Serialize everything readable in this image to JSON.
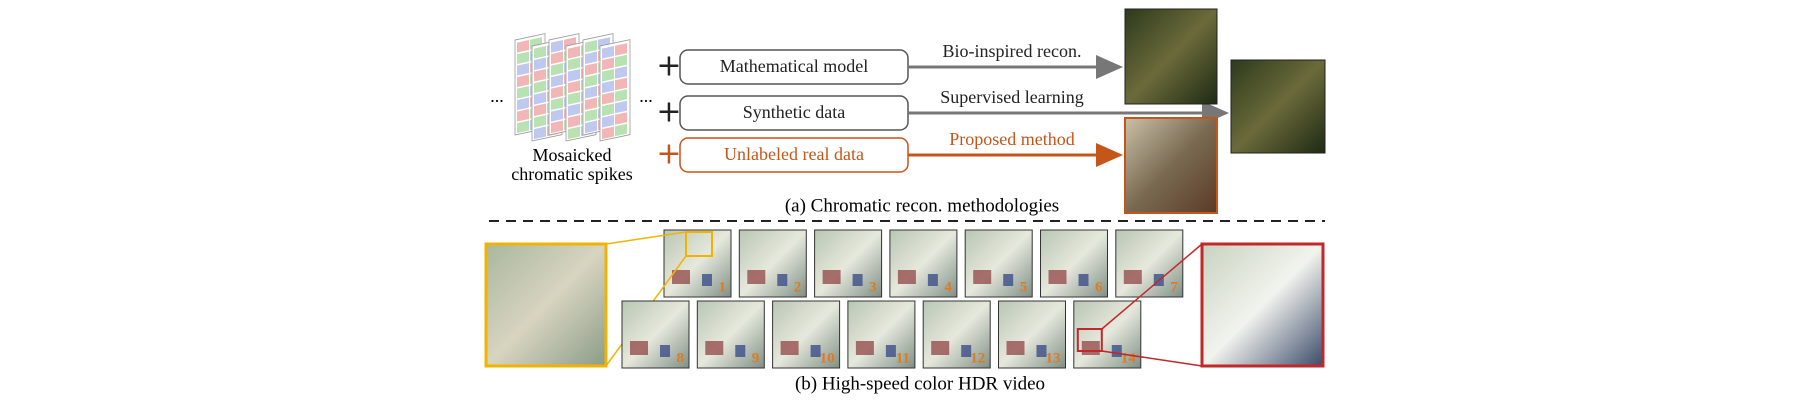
{
  "spikes": {
    "dots": [
      "...",
      "..."
    ],
    "label": [
      "Mosaicked",
      "chromatic spikes"
    ]
  },
  "methods": [
    {
      "sign": "+",
      "input": "Mathematical model",
      "method": "Bio-inspired recon."
    },
    {
      "sign": "+",
      "input": "Synthetic data",
      "method": "Supervised learning"
    },
    {
      "sign": "+",
      "input": "Unlabeled real data",
      "method": "Proposed method"
    }
  ],
  "caption_a": "(a) Chromatic recon. methodologies",
  "frame_labels": [
    "1",
    "2",
    "3",
    "4",
    "5",
    "6",
    "7",
    "8",
    "9",
    "10",
    "11",
    "12",
    "13",
    "14"
  ],
  "caption_b": "(b) High-speed color HDR video"
}
